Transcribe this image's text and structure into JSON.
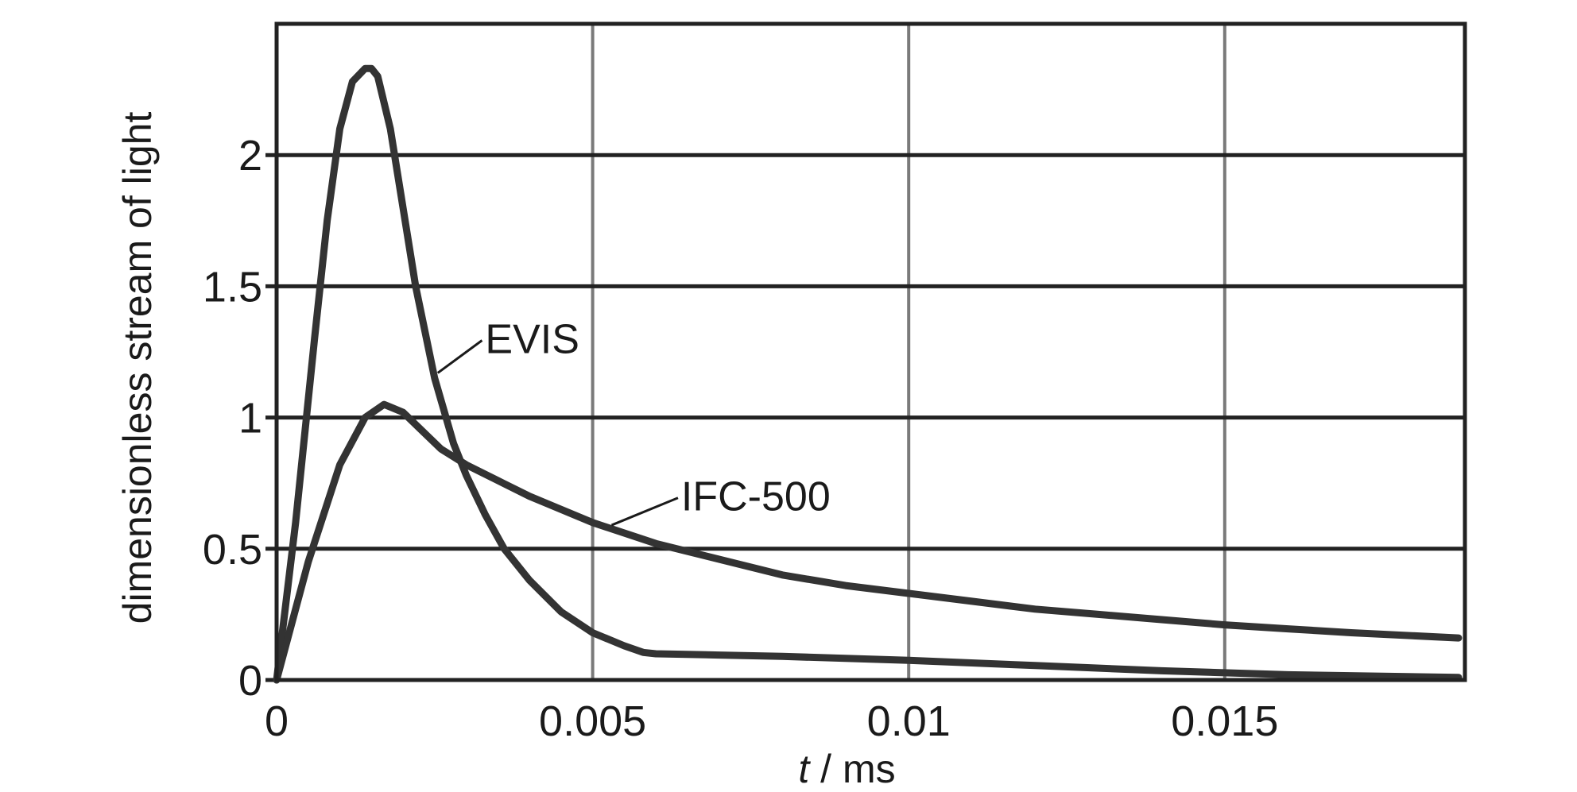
{
  "chart_data": {
    "type": "line",
    "title": "",
    "xlabel": {
      "italic": "t",
      "rest": " / ms"
    },
    "ylabel": "dimensionless stream of light",
    "xlim": [
      0,
      0.0188
    ],
    "ylim": [
      0,
      2.5
    ],
    "xticks": [
      {
        "value": 0,
        "label": "0"
      },
      {
        "value": 0.005,
        "label": "0.005"
      },
      {
        "value": 0.01,
        "label": "0.01"
      },
      {
        "value": 0.015,
        "label": "0.015"
      }
    ],
    "yticks": [
      {
        "value": 0,
        "label": "0"
      },
      {
        "value": 0.5,
        "label": "0.5"
      },
      {
        "value": 1,
        "label": "1"
      },
      {
        "value": 1.5,
        "label": "1.5"
      },
      {
        "value": 2,
        "label": "2"
      }
    ],
    "grid": true,
    "line_color": "#333333",
    "series": [
      {
        "name": "EVIS",
        "x": [
          0,
          0.0003,
          0.0006,
          0.0008,
          0.001,
          0.0012,
          0.0014,
          0.0015,
          0.0016,
          0.0018,
          0.002,
          0.0022,
          0.0025,
          0.0028,
          0.003,
          0.0033,
          0.0036,
          0.004,
          0.0045,
          0.005,
          0.0055,
          0.0058,
          0.006,
          0.007,
          0.008,
          0.01,
          0.012,
          0.014,
          0.016,
          0.0187
        ],
        "y": [
          0,
          0.6,
          1.3,
          1.75,
          2.1,
          2.28,
          2.33,
          2.33,
          2.3,
          2.1,
          1.8,
          1.5,
          1.15,
          0.9,
          0.78,
          0.63,
          0.5,
          0.38,
          0.26,
          0.18,
          0.13,
          0.105,
          0.1,
          0.095,
          0.09,
          0.075,
          0.055,
          0.035,
          0.02,
          0.01
        ]
      },
      {
        "name": "IFC-500",
        "x": [
          0,
          0.0005,
          0.001,
          0.0014,
          0.0017,
          0.002,
          0.0023,
          0.0026,
          0.003,
          0.0035,
          0.004,
          0.005,
          0.006,
          0.007,
          0.008,
          0.009,
          0.01,
          0.011,
          0.012,
          0.013,
          0.014,
          0.015,
          0.016,
          0.017,
          0.0187
        ],
        "y": [
          0,
          0.45,
          0.82,
          1.0,
          1.05,
          1.02,
          0.95,
          0.88,
          0.82,
          0.76,
          0.7,
          0.6,
          0.52,
          0.46,
          0.4,
          0.36,
          0.33,
          0.3,
          0.27,
          0.25,
          0.23,
          0.21,
          0.195,
          0.18,
          0.16
        ]
      }
    ],
    "annotations": [
      {
        "series": "EVIS",
        "text": "EVIS",
        "text_x": 0.0033,
        "text_y": 1.3,
        "point_x": 0.00255,
        "point_y": 1.17
      },
      {
        "series": "IFC-500",
        "text": "IFC-500",
        "text_x": 0.0064,
        "text_y": 0.7,
        "point_x": 0.0053,
        "point_y": 0.59
      }
    ]
  }
}
